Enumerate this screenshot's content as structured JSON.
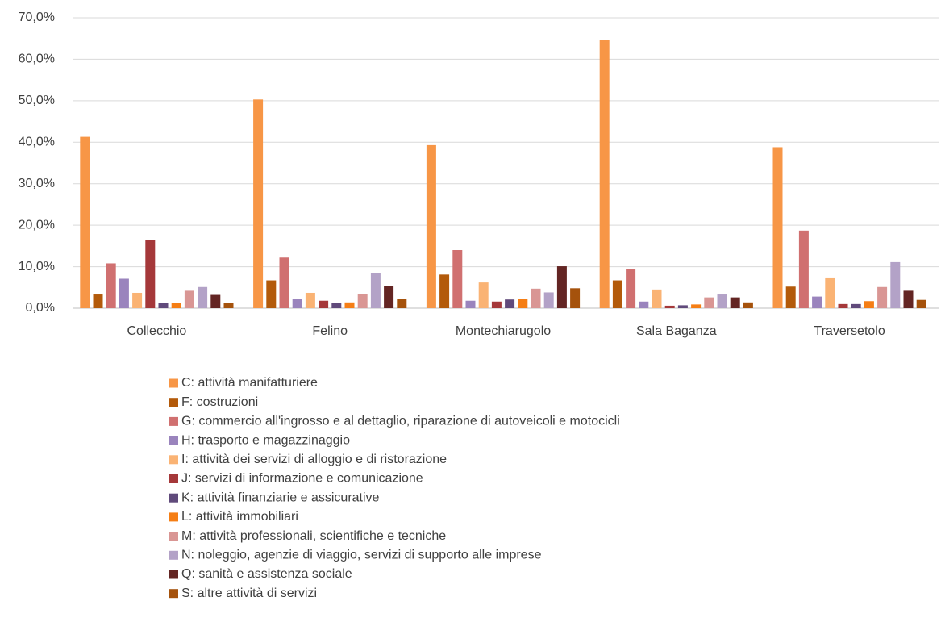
{
  "chart_data": {
    "type": "bar",
    "categories": [
      "Collecchio",
      "Felino",
      "Montechiarugolo",
      "Sala Baganza",
      "Traversetolo"
    ],
    "series": [
      {
        "name": "C: attività manifatturiere",
        "color": "#f79646",
        "values": [
          41.3,
          50.3,
          39.3,
          64.7,
          38.8
        ]
      },
      {
        "name": "F: costruzioni",
        "color": "#b35a0a",
        "values": [
          3.3,
          6.7,
          8.1,
          6.7,
          5.2
        ]
      },
      {
        "name": "G: commercio all'ingrosso e al dettaglio, riparazione di autoveicoli e motocicli",
        "color": "#d07070",
        "values": [
          10.8,
          12.2,
          14.0,
          9.4,
          18.7
        ]
      },
      {
        "name": "H: trasporto e magazzinaggio",
        "color": "#9a84bd",
        "values": [
          7.1,
          2.2,
          1.8,
          1.6,
          2.8
        ]
      },
      {
        "name": "I: attività dei servizi di alloggio e di ristorazione",
        "color": "#fab374",
        "values": [
          3.7,
          3.7,
          6.2,
          4.5,
          7.4
        ]
      },
      {
        "name": "J: servizi di informazione e comunicazione",
        "color": "#a5383a",
        "values": [
          16.4,
          1.8,
          1.6,
          0.6,
          1.0
        ]
      },
      {
        "name": "K: attività finanziarie e assicurative",
        "color": "#604a7b",
        "values": [
          1.3,
          1.3,
          2.1,
          0.7,
          1.0
        ]
      },
      {
        "name": "L: attività immobiliari",
        "color": "#f57e15",
        "values": [
          1.2,
          1.4,
          2.2,
          0.9,
          1.7
        ]
      },
      {
        "name": "M: attività professionali, scientifiche e tecniche",
        "color": "#d99694",
        "values": [
          4.2,
          3.5,
          4.7,
          2.6,
          5.1
        ]
      },
      {
        "name": "N: noleggio, agenzie di viaggio, servizi di supporto alle imprese",
        "color": "#b3a2c7",
        "values": [
          5.1,
          8.4,
          3.8,
          3.3,
          11.1
        ]
      },
      {
        "name": "Q: sanità e assistenza sociale",
        "color": "#632523",
        "values": [
          3.2,
          5.3,
          10.1,
          2.6,
          4.2
        ]
      },
      {
        "name": "S: altre attività di servizi",
        "color": "#a5520c",
        "values": [
          1.2,
          2.2,
          4.8,
          1.4,
          2.0
        ]
      }
    ],
    "ylim": [
      0,
      70
    ],
    "yticks": [
      {
        "value": 0,
        "label": "0,0%"
      },
      {
        "value": 10,
        "label": "10,0%"
      },
      {
        "value": 20,
        "label": "20,0%"
      },
      {
        "value": 30,
        "label": "30,0%"
      },
      {
        "value": 40,
        "label": "40,0%"
      },
      {
        "value": 50,
        "label": "50,0%"
      },
      {
        "value": 60,
        "label": "60,0%"
      },
      {
        "value": 70,
        "label": "70,0%"
      }
    ],
    "grid": true,
    "legend": "bottom"
  }
}
